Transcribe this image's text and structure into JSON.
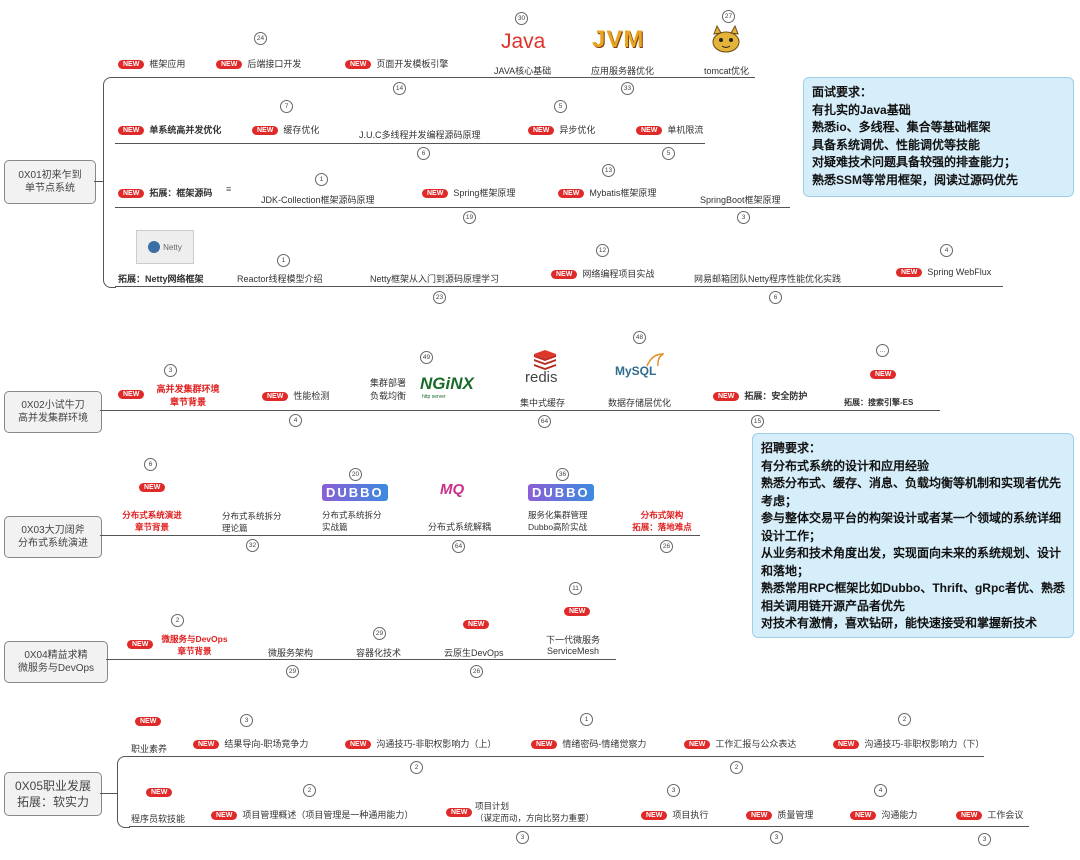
{
  "roots": {
    "r1": "0X01初来乍到\n单节点系统",
    "r2": "0X02小试牛刀\n高并发集群环境",
    "r3": "0X03大刀阔斧\n分布式系统演进",
    "r4": "0X04精益求精\n微服务与DevOps",
    "r5": "0X05职业发展\n拓展：软实力"
  },
  "badge_text": "NEW",
  "s1": {
    "row1": [
      "框架应用",
      "后端接口开发",
      "页面开发模板引擎",
      "JAVA核心基础",
      "应用服务器优化",
      "tomcat优化"
    ],
    "row2": [
      "单系统高并发优化",
      "缓存优化",
      "J.U.C多线程并发编程源码原理",
      "异步优化",
      "单机限流"
    ],
    "row3": [
      "拓展：框架源码",
      "JDK-Collection框架源码原理",
      "Spring框架原理",
      "Mybatis框架原理",
      "SpringBoot框架原理"
    ],
    "row4": [
      "拓展：Netty网络框架",
      "Reactor线程模型介绍",
      "Netty框架从入门到源码原理学习",
      "网络编程项目实战",
      "网易邮箱团队Netty程序性能优化实践",
      "Spring WebFlux"
    ],
    "logos": {
      "java": "Java",
      "jvm": "JVM",
      "netty": "Netty"
    },
    "nums": [
      "24",
      "14",
      "30",
      "33",
      "27",
      "7",
      "6",
      "5",
      "5",
      "1",
      "19",
      "13",
      "3",
      "1",
      "23",
      "12",
      "6",
      "4"
    ]
  },
  "s2": {
    "items": [
      "高并发集群环境\n章节背景",
      "性能检测",
      "集群部署\n负载均衡",
      "集中式缓存",
      "数据存储层优化",
      "拓展：安全防护",
      "拓展：搜索引擎-ES"
    ],
    "logos": {
      "nginx": "NGiNX",
      "nginx_sub": "http server",
      "redis": "redis",
      "mysql": "MySQL"
    },
    "nums": [
      "3",
      "4",
      "49",
      "64",
      "48",
      "15",
      "..."
    ]
  },
  "s3": {
    "items": [
      "分布式系统演进\n章节背景",
      "分布式系统拆分\n理论篇",
      "分布式系统拆分\n实战篇",
      "分布式系统解耦",
      "服务化集群管理\nDubbo高阶实战",
      "分布式架构\n拓展：落地难点"
    ],
    "logos": {
      "dubbo": "DUBBO",
      "mq": "MQ"
    },
    "nums": [
      "6",
      "32",
      "20",
      "64",
      "36",
      "26"
    ]
  },
  "s4": {
    "items": [
      "微服务与DevOps\n章节背景",
      "微服务架构",
      "容器化技术",
      "云原生DevOps",
      "下一代微服务\nServiceMesh"
    ],
    "nums": [
      "2",
      "29",
      "29",
      "26",
      "11"
    ]
  },
  "s5": {
    "row1": [
      "职业素养",
      "结果导向-职场竞争力",
      "沟通技巧-非职权影响力（上）",
      "情绪密码-情绪觉察力",
      "工作汇报与公众表达",
      "沟通技巧-非职权影响力（下）"
    ],
    "row2": [
      "程序员软技能",
      "项目管理概述（项目管理是一种通用能力）",
      "项目计划\n（谋定而动，方向比努力重要）",
      "项目执行",
      "质量管理",
      "沟通能力",
      "工作会议"
    ],
    "nums": [
      "3",
      "2",
      "1",
      "2",
      "2",
      "2",
      "3",
      "3",
      "3",
      "4",
      "3"
    ]
  },
  "info1": {
    "lines": [
      "面试要求：",
      "有扎实的Java基础",
      "熟悉io、多线程、集合等基础框架",
      "具备系统调优、性能调优等技能",
      "对疑难技术问题具备较强的排查能力；",
      "熟悉SSM等常用框架，阅读过源码优先"
    ]
  },
  "info2": {
    "lines": [
      "招聘要求：",
      "有分布式系统的设计和应用经验",
      "熟悉分布式、缓存、消息、负载均衡等机制和实现者优先考虑；",
      "参与整体交易平台的构架设计或者某一个领域的系统详细设计工作；",
      "从业务和技术角度出发，实现面向未来的系统规划、设计和落地；",
      "熟悉常用RPC框架比如Dubbo、Thrift、gRpc者优、熟悉相关调用链开源产品者优先",
      "对技术有激情，喜欢钻研，能快速接受和掌握新技术"
    ]
  },
  "colors": {
    "badge": "#e02a2a",
    "info_bg": "#d6eefa",
    "highlight": "#e02020"
  }
}
